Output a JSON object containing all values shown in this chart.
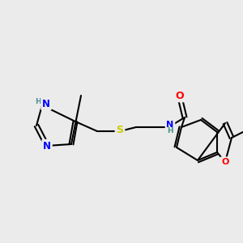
{
  "background_color": "#ebebeb",
  "bond_color": "#000000",
  "bond_width": 1.5,
  "atom_colors": {
    "N": "#0000ff",
    "O": "#ff0000",
    "S": "#cccc00",
    "H": "#4a9090",
    "C": "#000000"
  },
  "font_size": 8
}
